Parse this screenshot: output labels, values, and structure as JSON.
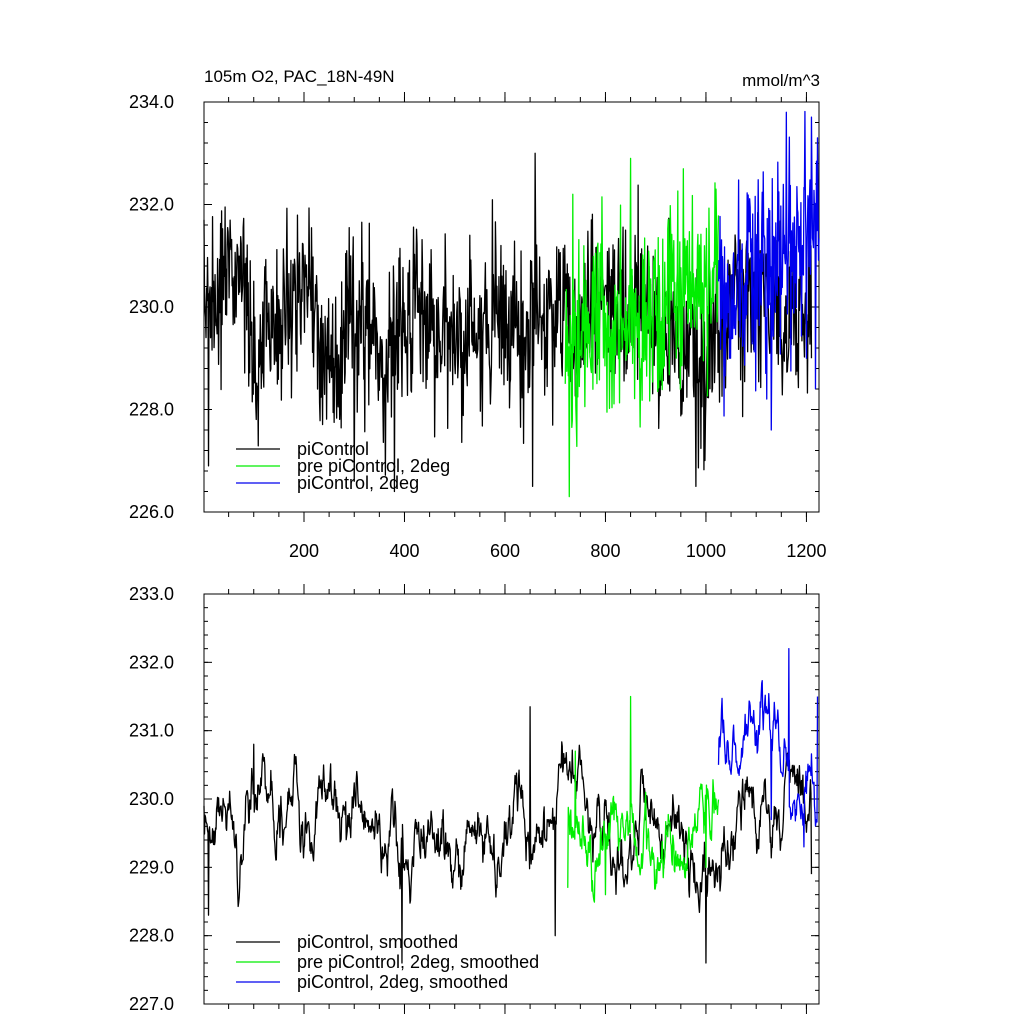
{
  "chart_data": [
    {
      "type": "line",
      "title": "105m O2, PAC_18N-49N",
      "units": "mmol/m^3",
      "xlabel": "",
      "ylabel": "",
      "xlim": [
        1,
        1225
      ],
      "ylim": [
        226.0,
        234.0
      ],
      "x_ticks": [
        200,
        400,
        600,
        800,
        1000,
        1200
      ],
      "x_tick_labels": [
        "200",
        "400",
        "600",
        "800",
        "1000",
        "1200"
      ],
      "y_ticks": [
        226,
        228,
        230,
        232,
        234
      ],
      "y_tick_labels": [
        "226.0",
        "228.0",
        "230.0",
        "232.0",
        "234.0"
      ],
      "legend_position": "bottom-left",
      "series": [
        {
          "name": "piControl",
          "color": "#000000",
          "x_start": 1,
          "x_end": 1210,
          "mean": 229.75,
          "spread": 0.9,
          "trend": 0.25,
          "seed": 11,
          "noise": "raw",
          "keypoints": [
            [
              1,
              231.7
            ],
            [
              10,
              226.9
            ],
            [
              300,
              226.6
            ],
            [
              380,
              226.4
            ],
            [
              655,
              226.5
            ],
            [
              660,
              233.0
            ],
            [
              980,
              226.5
            ],
            [
              1210,
              229.0
            ]
          ]
        },
        {
          "name": "pre piControl, 2deg",
          "color": "#00ee00",
          "x_start": 720,
          "x_end": 1025,
          "mean": 230.0,
          "spread": 1.0,
          "trend": 0.8,
          "seed": 23,
          "noise": "raw",
          "keypoints": [
            [
              720,
              228.5
            ],
            [
              728,
              226.3
            ],
            [
              735,
              232.2
            ],
            [
              850,
              232.9
            ],
            [
              1020,
              232.3
            ]
          ]
        },
        {
          "name": "piControl, 2deg",
          "color": "#0000ee",
          "x_start": 1025,
          "x_end": 1225,
          "mean": 230.6,
          "spread": 1.1,
          "trend": 0.8,
          "seed": 37,
          "noise": "raw",
          "keypoints": [
            [
              1025,
              230.5
            ],
            [
              1130,
              227.6
            ],
            [
              1160,
              233.8
            ],
            [
              1200,
              229.0
            ],
            [
              1222,
              233.3
            ]
          ]
        }
      ]
    },
    {
      "type": "line",
      "title": "",
      "xlabel": "",
      "ylabel": "",
      "xlim": [
        1,
        1225
      ],
      "ylim": [
        227.0,
        233.0
      ],
      "x_ticks": [
        200,
        400,
        600,
        800,
        1000,
        1200
      ],
      "y_ticks": [
        227,
        228,
        229,
        230,
        231,
        232,
        233
      ],
      "y_tick_labels": [
        "227.0",
        "228.0",
        "229.0",
        "230.0",
        "231.0",
        "232.0",
        "233.0"
      ],
      "legend_position": "bottom-left",
      "series": [
        {
          "name": "piControl, smoothed",
          "color": "#000000",
          "x_start": 1,
          "x_end": 1210,
          "mean": 229.6,
          "spread": 0.55,
          "trend": 0.0,
          "seed": 11,
          "noise": "smooth",
          "keypoints": [
            [
              1,
              229.9
            ],
            [
              10,
              228.3
            ],
            [
              100,
              230.8
            ],
            [
              395,
              227.6
            ],
            [
              650,
              231.35
            ],
            [
              700,
              228.0
            ],
            [
              1000,
              227.6
            ],
            [
              1210,
              228.9
            ]
          ]
        },
        {
          "name": "pre piControl, 2deg, smoothed",
          "color": "#00ee00",
          "x_start": 725,
          "x_end": 1025,
          "mean": 230.0,
          "spread": 0.6,
          "trend": 0.0,
          "seed": 23,
          "noise": "smooth",
          "keypoints": [
            [
              725,
              228.7
            ],
            [
              740,
              230.7
            ],
            [
              800,
              228.6
            ],
            [
              850,
              231.5
            ],
            [
              1000,
              229.0
            ],
            [
              1020,
              230.0
            ]
          ]
        },
        {
          "name": "piControl, 2deg, smoothed",
          "color": "#0000ee",
          "x_start": 1025,
          "x_end": 1222,
          "mean": 230.9,
          "spread": 0.55,
          "trend": 0.0,
          "seed": 37,
          "noise": "smooth",
          "keypoints": [
            [
              1025,
              230.5
            ],
            [
              1130,
              229.7
            ],
            [
              1165,
              232.2
            ],
            [
              1195,
              229.3
            ],
            [
              1222,
              231.5
            ]
          ]
        }
      ]
    }
  ]
}
